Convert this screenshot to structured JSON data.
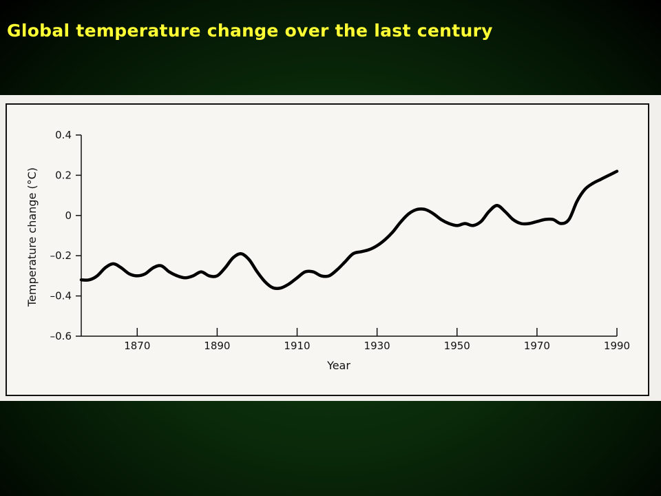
{
  "slide": {
    "title": "Global temperature change over the last century"
  },
  "chart_data": {
    "type": "line",
    "title": "",
    "xlabel": "Year",
    "ylabel": "Temperature change (°C)",
    "xlim": [
      1856,
      1990
    ],
    "ylim": [
      -0.6,
      0.4
    ],
    "xticks": [
      1870,
      1890,
      1910,
      1930,
      1950,
      1970,
      1990
    ],
    "yticks": [
      0.4,
      0.2,
      0,
      -0.2,
      -0.4,
      -0.6
    ],
    "ytick_labels": [
      "0.4",
      "0.2",
      "0",
      "–0.2",
      "–0.4",
      "–0.6"
    ],
    "grid": false,
    "series": [
      {
        "color": "#000000",
        "x": [
          1856,
          1858,
          1860,
          1862,
          1864,
          1866,
          1868,
          1870,
          1872,
          1874,
          1876,
          1878,
          1880,
          1882,
          1884,
          1886,
          1888,
          1890,
          1892,
          1894,
          1896,
          1898,
          1900,
          1902,
          1904,
          1906,
          1908,
          1910,
          1912,
          1914,
          1916,
          1918,
          1920,
          1922,
          1924,
          1926,
          1928,
          1930,
          1932,
          1934,
          1936,
          1938,
          1940,
          1942,
          1944,
          1946,
          1948,
          1950,
          1952,
          1954,
          1956,
          1958,
          1960,
          1962,
          1964,
          1966,
          1968,
          1970,
          1972,
          1974,
          1976,
          1978,
          1980,
          1982,
          1984,
          1986,
          1988,
          1990
        ],
        "y": [
          -0.32,
          -0.32,
          -0.3,
          -0.26,
          -0.24,
          -0.26,
          -0.29,
          -0.3,
          -0.29,
          -0.26,
          -0.25,
          -0.28,
          -0.3,
          -0.31,
          -0.3,
          -0.28,
          -0.3,
          -0.3,
          -0.26,
          -0.21,
          -0.19,
          -0.22,
          -0.28,
          -0.33,
          -0.36,
          -0.36,
          -0.34,
          -0.31,
          -0.28,
          -0.28,
          -0.3,
          -0.3,
          -0.27,
          -0.23,
          -0.19,
          -0.18,
          -0.17,
          -0.15,
          -0.12,
          -0.08,
          -0.03,
          0.01,
          0.03,
          0.03,
          0.01,
          -0.02,
          -0.04,
          -0.05,
          -0.04,
          -0.05,
          -0.03,
          0.02,
          0.05,
          0.02,
          -0.02,
          -0.04,
          -0.04,
          -0.03,
          -0.02,
          -0.02,
          -0.04,
          -0.02,
          0.07,
          0.13,
          0.16,
          0.18,
          0.2,
          0.22
        ]
      }
    ]
  }
}
